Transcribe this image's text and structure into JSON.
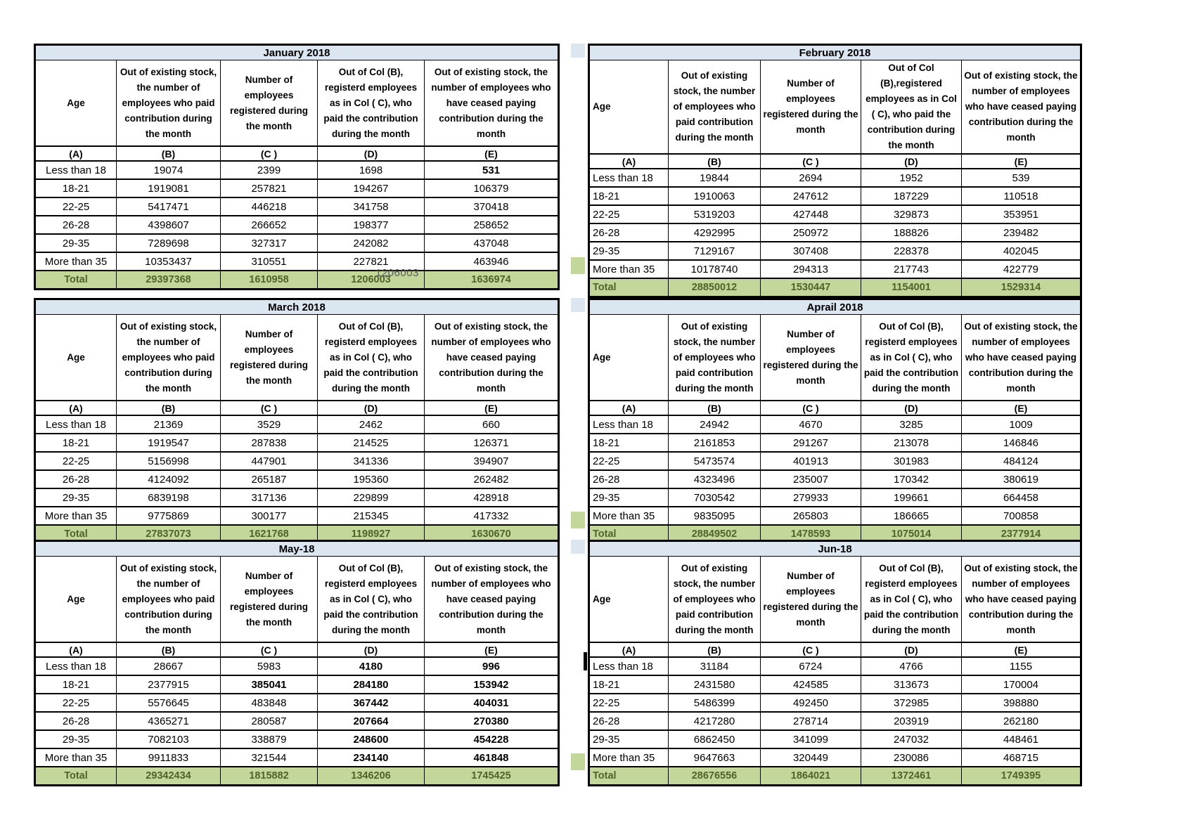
{
  "colors": {
    "title_bg": "#DCE6F1",
    "total_bg": "#C4D79B",
    "green_value": "#76933C",
    "dark_green": "#4F6228",
    "border": "#000000",
    "note_gray": "#595959"
  },
  "floating_note": "1206003",
  "months": [
    {
      "title": "January 2018",
      "headers": {
        "age": "Age",
        "b": "Out of existing stock, the number of employees who paid contribution during the month",
        "c": "Number of employees registered during the month",
        "d": "Out of Col (B), registerd employees as in Col ( C), who paid the contribution during the month",
        "e": "Out of existing stock, the number of  employees  who have ceased paying contribution during the month"
      },
      "column_letters": [
        "(A)",
        "(B)",
        "(C )",
        "(D)",
        "(E)"
      ],
      "letter_styles": [
        "",
        "",
        "",
        "",
        ""
      ],
      "rows": [
        {
          "age": "Less than 18",
          "values": [
            "19074",
            "2399",
            "1698",
            "531"
          ],
          "styles": [
            "",
            "",
            "",
            "bold"
          ]
        },
        {
          "age": "18-21",
          "values": [
            "1919081",
            "257821",
            "194267",
            "106379"
          ],
          "styles": [
            "",
            "",
            "",
            "green"
          ]
        },
        {
          "age": "22-25",
          "values": [
            "5417471",
            "446218",
            "341758",
            "370418"
          ],
          "styles": [
            "",
            "",
            "",
            "green"
          ]
        },
        {
          "age": "26-28",
          "values": [
            "4398607",
            "266652",
            "198377",
            "258652"
          ],
          "styles": [
            "",
            "",
            "",
            "green"
          ]
        },
        {
          "age": "29-35",
          "values": [
            "7289698",
            "327317",
            "242082",
            "437048"
          ],
          "styles": [
            "",
            "",
            "",
            "green"
          ]
        },
        {
          "age": "More than 35",
          "values": [
            "10353437",
            "310551",
            "227821",
            "463946"
          ],
          "styles": [
            "",
            "",
            "",
            "green"
          ]
        }
      ],
      "total": {
        "label": "Total",
        "values": [
          "29397368",
          "1610958",
          "1206003",
          "1636974"
        ],
        "styles": [
          "",
          "",
          "",
          ""
        ]
      }
    },
    {
      "title": "February 2018",
      "headers": {
        "age": "Age",
        "b": "Out of existing stock, the number of employees who paid contribution during the month",
        "c": "Number of employees registered during the month",
        "d": "Out of Col (B),registered employees as in Col ( C), who paid the contribution during the month",
        "e": "Out of existing stock, the number of employees  who have ceased paying contribution during the month"
      },
      "column_letters": [
        "(A)",
        "(B)",
        "(C )",
        "(D)",
        "(E)"
      ],
      "letter_styles": [
        "",
        "",
        "",
        "",
        ""
      ],
      "rows": [
        {
          "age": "Less than 18",
          "values": [
            "19844",
            "2694",
            "1952",
            "539"
          ],
          "styles": [
            "",
            "",
            "",
            ""
          ]
        },
        {
          "age": "18-21",
          "values": [
            "1910063",
            "247612",
            "187229",
            "110518"
          ],
          "styles": [
            "",
            "",
            "",
            "green"
          ]
        },
        {
          "age": "22-25",
          "values": [
            "5319203",
            "427448",
            "329873",
            "353951"
          ],
          "styles": [
            "",
            "",
            "",
            "green"
          ]
        },
        {
          "age": "26-28",
          "values": [
            "4292995",
            "250972",
            "188826",
            "239482"
          ],
          "styles": [
            "",
            "",
            "",
            "green"
          ]
        },
        {
          "age": "29-35",
          "values": [
            "7129167",
            "307408",
            "228378",
            "402045"
          ],
          "styles": [
            "",
            "",
            "",
            "green"
          ]
        },
        {
          "age": "More than 35",
          "values": [
            "10178740",
            "294313",
            "217743",
            "422779"
          ],
          "styles": [
            "",
            "",
            "",
            "green"
          ]
        }
      ],
      "total": {
        "label": "Total",
        "values": [
          "28850012",
          "1530447",
          "1154001",
          "1529314"
        ],
        "styles": [
          "",
          "",
          "",
          ""
        ]
      }
    },
    {
      "title": "March 2018",
      "headers": {
        "age": "Age",
        "b": "Out of existing stock, the number of employees who paid contribution during the month",
        "c": "Number of employees registered during the month",
        "d": "Out of Col (B), registerd employees as in Col ( C), who paid the contribution during the month",
        "e": "Out of existing stock, the number of  employees  who have ceased paying contribution during the month"
      },
      "column_letters": [
        "(A)",
        "(B)",
        "(C )",
        "(D)",
        "(E)"
      ],
      "letter_styles": [
        "",
        "",
        "",
        "",
        "green"
      ],
      "rows": [
        {
          "age": "Less than 18",
          "values": [
            "21369",
            "3529",
            "2462",
            "660"
          ],
          "styles": [
            "",
            "",
            "",
            ""
          ]
        },
        {
          "age": "18-21",
          "values": [
            "1919547",
            "287838",
            "214525",
            "126371"
          ],
          "styles": [
            "",
            "",
            "",
            "green"
          ]
        },
        {
          "age": "22-25",
          "values": [
            "5156998",
            "447901",
            "341336",
            "394907"
          ],
          "styles": [
            "",
            "",
            "",
            "green"
          ]
        },
        {
          "age": "26-28",
          "values": [
            "4124092",
            "265187",
            "195360",
            "262482"
          ],
          "styles": [
            "",
            "",
            "",
            "green"
          ]
        },
        {
          "age": "29-35",
          "values": [
            "6839198",
            "317136",
            "229899",
            "428918"
          ],
          "styles": [
            "",
            "",
            "",
            "green"
          ]
        },
        {
          "age": "More than 35",
          "values": [
            "9775869",
            "300177",
            "215345",
            "417332"
          ],
          "styles": [
            "",
            "",
            "",
            "green"
          ]
        }
      ],
      "total": {
        "label": "Total",
        "values": [
          "27837073",
          "1621768",
          "1198927",
          "1630670"
        ],
        "styles": [
          "",
          "",
          "",
          ""
        ]
      }
    },
    {
      "title": "Aprail 2018",
      "headers": {
        "age": "Age",
        "b": "Out of existing stock, the number of employees who paid contribution during the month",
        "c": "Number of employees registered during the month",
        "d": "Out of Col (B), registerd employees as in Col ( C), who paid the contribution during the month",
        "e": "Out of existing stock, the number of employees  who have ceased paying contribution during the month"
      },
      "column_letters": [
        "(A)",
        "(B)",
        "(C )",
        "(D)",
        "(E)"
      ],
      "letter_styles": [
        "",
        "",
        "",
        "",
        ""
      ],
      "rows": [
        {
          "age": "Less than 18",
          "values": [
            "24942",
            "4670",
            "3285",
            "1009"
          ],
          "styles": [
            "",
            "",
            "",
            ""
          ]
        },
        {
          "age": "18-21",
          "values": [
            "2161853",
            "291267",
            "213078",
            "146846"
          ],
          "styles": [
            "",
            "",
            "",
            ""
          ]
        },
        {
          "age": "22-25",
          "values": [
            "5473574",
            "401913",
            "301983",
            "484124"
          ],
          "styles": [
            "",
            "",
            "",
            ""
          ]
        },
        {
          "age": "26-28",
          "values": [
            "4323496",
            "235007",
            "170342",
            "380619"
          ],
          "styles": [
            "",
            "",
            "",
            ""
          ]
        },
        {
          "age": "29-35",
          "values": [
            "7030542",
            "279933",
            "199661",
            "664458"
          ],
          "styles": [
            "",
            "",
            "",
            ""
          ]
        },
        {
          "age": "More than 35",
          "values": [
            "9835095",
            "265803",
            "186665",
            "700858"
          ],
          "styles": [
            "",
            "",
            "",
            ""
          ]
        }
      ],
      "total": {
        "label": "Total",
        "values": [
          "28849502",
          "1478593",
          "1075014",
          "2377914"
        ],
        "styles": [
          "reg",
          "reg",
          "reg",
          ""
        ]
      }
    },
    {
      "title": "May-18",
      "headers": {
        "age": "Age",
        "b": "Out of existing stock, the number of employees who paid contribution during the month",
        "c": "Number of employees registered during the month",
        "d": "Out of Col (B), registerd employees as in Col ( C), who paid the contribution during the month",
        "e": "Out of existing stock, the number of  employees  who have ceased paying contribution during the month"
      },
      "column_letters": [
        "(A)",
        "(B)",
        "(C )",
        "(D)",
        "(E)"
      ],
      "letter_styles": [
        "",
        "",
        "",
        "",
        ""
      ],
      "rows": [
        {
          "age": "Less than 18",
          "values": [
            "28667",
            "5983",
            "4180",
            "996"
          ],
          "styles": [
            "",
            "",
            "greenbold",
            "greenbold"
          ]
        },
        {
          "age": "18-21",
          "values": [
            "2377915",
            "385041",
            "284180",
            "153942"
          ],
          "styles": [
            "",
            "greenbold",
            "greenbold",
            "greenbold"
          ]
        },
        {
          "age": "22-25",
          "values": [
            "5576645",
            "483848",
            "367442",
            "404031"
          ],
          "styles": [
            "",
            "",
            "greenbold",
            "greenbold"
          ]
        },
        {
          "age": "26-28",
          "values": [
            "4365271",
            "280587",
            "207664",
            "270380"
          ],
          "styles": [
            "",
            "",
            "greenbold",
            "greenbold"
          ]
        },
        {
          "age": "29-35",
          "values": [
            "7082103",
            "338879",
            "248600",
            "454228"
          ],
          "styles": [
            "",
            "",
            "greenbold",
            "greenbold"
          ]
        },
        {
          "age": "More than 35",
          "values": [
            "9911833",
            "321544",
            "234140",
            "461848"
          ],
          "styles": [
            "",
            "",
            "greenbold",
            "greenbold"
          ]
        }
      ],
      "total": {
        "label": "Total",
        "values": [
          "29342434",
          "1815882",
          "1346206",
          "1745425"
        ],
        "styles": [
          "",
          "",
          "",
          ""
        ]
      }
    },
    {
      "title": "Jun-18",
      "headers": {
        "age": "Age",
        "b": "Out of existing stock, the number of employees who paid contribution during the month",
        "c": "Number of employees registered during the month",
        "d": "Out of Col (B), registerd employees as in Col ( C), who paid the contribution during the month",
        "e": "Out of existing stock, the number of employees  who have ceased paying contribution during the month"
      },
      "column_letters": [
        "(A)",
        "(B)",
        "(C )",
        "(D)",
        "(E)"
      ],
      "letter_styles": [
        "",
        "",
        "",
        "",
        ""
      ],
      "rows": [
        {
          "age": "Less than 18",
          "values": [
            "31184",
            "6724",
            "4766",
            "1155"
          ],
          "styles": [
            "",
            "",
            "",
            ""
          ]
        },
        {
          "age": "18-21",
          "values": [
            "2431580",
            "424585",
            "313673",
            "170004"
          ],
          "styles": [
            "",
            "",
            "",
            ""
          ]
        },
        {
          "age": "22-25",
          "values": [
            "5486399",
            "492450",
            "372985",
            "398880"
          ],
          "styles": [
            "",
            "",
            "",
            ""
          ]
        },
        {
          "age": "26-28",
          "values": [
            "4217280",
            "278714",
            "203919",
            "262180"
          ],
          "styles": [
            "",
            "",
            "",
            ""
          ]
        },
        {
          "age": "29-35",
          "values": [
            "6862450",
            "341099",
            "247032",
            "448461"
          ],
          "styles": [
            "",
            "",
            "",
            ""
          ]
        },
        {
          "age": "More than 35",
          "values": [
            "9647663",
            "320449",
            "230086",
            "468715"
          ],
          "styles": [
            "",
            "",
            "",
            ""
          ]
        }
      ],
      "total": {
        "label": "Total",
        "values": [
          "28676556",
          "1864021",
          "1372461",
          "1749395"
        ],
        "styles": [
          "",
          "",
          "",
          ""
        ]
      }
    }
  ]
}
